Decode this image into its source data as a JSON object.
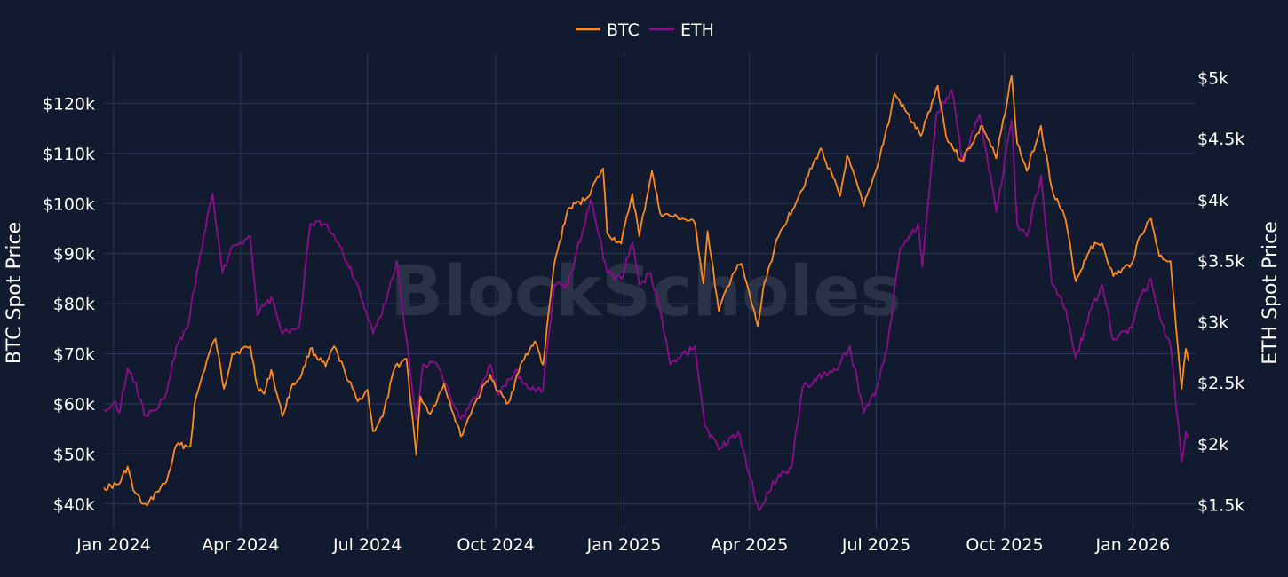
{
  "chart_data": {
    "type": "line",
    "title": "",
    "watermark": "BlockScholes",
    "legend": {
      "placement": "top-center",
      "items": [
        "BTC",
        "ETH"
      ]
    },
    "grid": true,
    "colors": {
      "background": "#111a2e",
      "grid": "#2c3858",
      "btc": "#ff8c1a",
      "eth": "#8c0d8c",
      "text": "#ffffff",
      "watermark": "#2a3248"
    },
    "xaxis": {
      "label": "",
      "range": [
        "2023-12-25",
        "2026-02-15"
      ],
      "ticks": [
        {
          "date": "2024-01-01",
          "label": "Jan 2024"
        },
        {
          "date": "2024-04-01",
          "label": "Apr 2024"
        },
        {
          "date": "2024-07-01",
          "label": "Jul 2024"
        },
        {
          "date": "2024-10-01",
          "label": "Oct 2024"
        },
        {
          "date": "2025-01-01",
          "label": "Jan 2025"
        },
        {
          "date": "2025-04-01",
          "label": "Apr 2025"
        },
        {
          "date": "2025-07-01",
          "label": "Jul 2025"
        },
        {
          "date": "2025-10-01",
          "label": "Oct 2025"
        },
        {
          "date": "2026-01-01",
          "label": "Jan 2026"
        }
      ]
    },
    "yaxis_left": {
      "label": "BTC Spot Price",
      "range": [
        35000,
        130000
      ],
      "ticks": [
        {
          "value": 40000,
          "label": "$40k"
        },
        {
          "value": 50000,
          "label": "$50k"
        },
        {
          "value": 60000,
          "label": "$60k"
        },
        {
          "value": 70000,
          "label": "$70k"
        },
        {
          "value": 80000,
          "label": "$80k"
        },
        {
          "value": 90000,
          "label": "$90k"
        },
        {
          "value": 100000,
          "label": "$100k"
        },
        {
          "value": 110000,
          "label": "$110k"
        },
        {
          "value": 120000,
          "label": "$120k"
        }
      ]
    },
    "yaxis_right": {
      "label": "ETH Spot Price",
      "range": [
        1300,
        5200
      ],
      "ticks": [
        {
          "value": 1500,
          "label": "$1.5k"
        },
        {
          "value": 2000,
          "label": "$2k"
        },
        {
          "value": 2500,
          "label": "$2.5k"
        },
        {
          "value": 3000,
          "label": "$3k"
        },
        {
          "value": 3500,
          "label": "$3.5k"
        },
        {
          "value": 4000,
          "label": "$4k"
        },
        {
          "value": 4500,
          "label": "$4.5k"
        },
        {
          "value": 5000,
          "label": "$5k"
        }
      ]
    },
    "series": [
      {
        "name": "BTC",
        "axis": "left",
        "points": [
          [
            "2023-12-25",
            43200
          ],
          [
            "2024-01-05",
            44000
          ],
          [
            "2024-01-11",
            47500
          ],
          [
            "2024-01-15",
            42800
          ],
          [
            "2024-01-22",
            40000
          ],
          [
            "2024-01-25",
            39700
          ],
          [
            "2024-02-01",
            42500
          ],
          [
            "2024-02-08",
            44500
          ],
          [
            "2024-02-15",
            51800
          ],
          [
            "2024-02-25",
            51500
          ],
          [
            "2024-02-28",
            60000
          ],
          [
            "2024-03-05",
            66000
          ],
          [
            "2024-03-10",
            70500
          ],
          [
            "2024-03-14",
            73000
          ],
          [
            "2024-03-20",
            63000
          ],
          [
            "2024-03-26",
            70000
          ],
          [
            "2024-04-08",
            71500
          ],
          [
            "2024-04-13",
            63500
          ],
          [
            "2024-04-18",
            62000
          ],
          [
            "2024-04-23",
            66800
          ],
          [
            "2024-05-01",
            57500
          ],
          [
            "2024-05-07",
            63000
          ],
          [
            "2024-05-15",
            66000
          ],
          [
            "2024-05-21",
            71000
          ],
          [
            "2024-06-01",
            67500
          ],
          [
            "2024-06-07",
            71500
          ],
          [
            "2024-06-15",
            66200
          ],
          [
            "2024-06-24",
            60500
          ],
          [
            "2024-07-01",
            62800
          ],
          [
            "2024-07-05",
            54500
          ],
          [
            "2024-07-12",
            57500
          ],
          [
            "2024-07-21",
            67500
          ],
          [
            "2024-07-29",
            69000
          ],
          [
            "2024-08-05",
            49800
          ],
          [
            "2024-08-08",
            61500
          ],
          [
            "2024-08-15",
            58000
          ],
          [
            "2024-08-25",
            64000
          ],
          [
            "2024-09-06",
            53500
          ],
          [
            "2024-09-15",
            59500
          ],
          [
            "2024-09-27",
            65800
          ],
          [
            "2024-10-01",
            63000
          ],
          [
            "2024-10-10",
            60200
          ],
          [
            "2024-10-20",
            68500
          ],
          [
            "2024-10-29",
            72500
          ],
          [
            "2024-11-04",
            67800
          ],
          [
            "2024-11-12",
            88000
          ],
          [
            "2024-11-22",
            99000
          ],
          [
            "2024-12-05",
            101000
          ],
          [
            "2024-12-17",
            107000
          ],
          [
            "2024-12-20",
            94000
          ],
          [
            "2024-12-30",
            92000
          ],
          [
            "2025-01-07",
            102000
          ],
          [
            "2025-01-12",
            93500
          ],
          [
            "2025-01-21",
            106500
          ],
          [
            "2025-01-27",
            98000
          ],
          [
            "2025-02-03",
            97500
          ],
          [
            "2025-02-12",
            97000
          ],
          [
            "2025-02-21",
            96000
          ],
          [
            "2025-02-27",
            84000
          ],
          [
            "2025-03-02",
            94500
          ],
          [
            "2025-03-10",
            78500
          ],
          [
            "2025-03-20",
            86000
          ],
          [
            "2025-03-26",
            88000
          ],
          [
            "2025-04-07",
            75500
          ],
          [
            "2025-04-12",
            84500
          ],
          [
            "2025-04-22",
            93500
          ],
          [
            "2025-05-08",
            102500
          ],
          [
            "2025-05-22",
            111000
          ],
          [
            "2025-06-05",
            101500
          ],
          [
            "2025-06-10",
            109500
          ],
          [
            "2025-06-22",
            99500
          ],
          [
            "2025-07-01",
            106800
          ],
          [
            "2025-07-11",
            117500
          ],
          [
            "2025-07-14",
            122000
          ],
          [
            "2025-08-02",
            113500
          ],
          [
            "2025-08-14",
            123500
          ],
          [
            "2025-08-20",
            113500
          ],
          [
            "2025-08-31",
            108500
          ],
          [
            "2025-09-15",
            115500
          ],
          [
            "2025-09-25",
            109000
          ],
          [
            "2025-10-06",
            125500
          ],
          [
            "2025-10-10",
            112000
          ],
          [
            "2025-10-17",
            106500
          ],
          [
            "2025-10-27",
            115500
          ],
          [
            "2025-11-04",
            103000
          ],
          [
            "2025-11-14",
            96500
          ],
          [
            "2025-11-21",
            84500
          ],
          [
            "2025-12-02",
            91500
          ],
          [
            "2025-12-10",
            92000
          ],
          [
            "2025-12-18",
            85500
          ],
          [
            "2025-12-31",
            88000
          ],
          [
            "2026-01-06",
            93500
          ],
          [
            "2026-01-14",
            97000
          ],
          [
            "2026-01-20",
            89500
          ],
          [
            "2026-01-28",
            88500
          ],
          [
            "2026-02-05",
            63000
          ],
          [
            "2026-02-08",
            71000
          ],
          [
            "2026-02-10",
            68500
          ]
        ]
      },
      {
        "name": "ETH",
        "axis": "left",
        "points": [
          [
            "2023-12-25",
            2280
          ],
          [
            "2024-01-02",
            2350
          ],
          [
            "2024-01-05",
            2250
          ],
          [
            "2024-01-11",
            2620
          ],
          [
            "2024-01-17",
            2500
          ],
          [
            "2024-01-23",
            2230
          ],
          [
            "2024-02-01",
            2280
          ],
          [
            "2024-02-08",
            2420
          ],
          [
            "2024-02-15",
            2800
          ],
          [
            "2024-02-23",
            2950
          ],
          [
            "2024-03-03",
            3550
          ],
          [
            "2024-03-12",
            4050
          ],
          [
            "2024-03-19",
            3400
          ],
          [
            "2024-03-26",
            3620
          ],
          [
            "2024-04-08",
            3700
          ],
          [
            "2024-04-13",
            3050
          ],
          [
            "2024-04-23",
            3200
          ],
          [
            "2024-05-01",
            2900
          ],
          [
            "2024-05-13",
            2950
          ],
          [
            "2024-05-21",
            3800
          ],
          [
            "2024-06-02",
            3800
          ],
          [
            "2024-06-10",
            3650
          ],
          [
            "2024-06-24",
            3300
          ],
          [
            "2024-07-05",
            2900
          ],
          [
            "2024-07-14",
            3150
          ],
          [
            "2024-07-22",
            3500
          ],
          [
            "2024-08-05",
            2200
          ],
          [
            "2024-08-10",
            2650
          ],
          [
            "2024-08-20",
            2650
          ],
          [
            "2024-09-06",
            2200
          ],
          [
            "2024-09-18",
            2400
          ],
          [
            "2024-09-27",
            2650
          ],
          [
            "2024-10-03",
            2400
          ],
          [
            "2024-10-15",
            2600
          ],
          [
            "2024-10-25",
            2450
          ],
          [
            "2024-11-04",
            2450
          ],
          [
            "2024-11-12",
            3300
          ],
          [
            "2024-11-22",
            3300
          ],
          [
            "2024-12-08",
            4000
          ],
          [
            "2024-12-20",
            3400
          ],
          [
            "2024-12-30",
            3350
          ],
          [
            "2025-01-07",
            3650
          ],
          [
            "2025-01-12",
            3300
          ],
          [
            "2025-01-20",
            3400
          ],
          [
            "2025-01-27",
            3100
          ],
          [
            "2025-02-03",
            2650
          ],
          [
            "2025-02-10",
            2700
          ],
          [
            "2025-02-21",
            2800
          ],
          [
            "2025-02-28",
            2150
          ],
          [
            "2025-03-10",
            1950
          ],
          [
            "2025-03-24",
            2100
          ],
          [
            "2025-04-08",
            1450
          ],
          [
            "2025-04-15",
            1600
          ],
          [
            "2025-04-22",
            1750
          ],
          [
            "2025-05-01",
            1800
          ],
          [
            "2025-05-09",
            2450
          ],
          [
            "2025-05-20",
            2550
          ],
          [
            "2025-06-02",
            2600
          ],
          [
            "2025-06-12",
            2800
          ],
          [
            "2025-06-22",
            2250
          ],
          [
            "2025-07-01",
            2450
          ],
          [
            "2025-07-09",
            2800
          ],
          [
            "2025-07-18",
            3600
          ],
          [
            "2025-07-31",
            3800
          ],
          [
            "2025-08-03",
            3450
          ],
          [
            "2025-08-13",
            4700
          ],
          [
            "2025-08-24",
            4900
          ],
          [
            "2025-09-01",
            4300
          ],
          [
            "2025-09-13",
            4700
          ],
          [
            "2025-09-25",
            3900
          ],
          [
            "2025-10-06",
            4650
          ],
          [
            "2025-10-10",
            3800
          ],
          [
            "2025-10-17",
            3700
          ],
          [
            "2025-10-27",
            4200
          ],
          [
            "2025-11-04",
            3300
          ],
          [
            "2025-11-14",
            3100
          ],
          [
            "2025-11-21",
            2700
          ],
          [
            "2025-12-02",
            3100
          ],
          [
            "2025-12-10",
            3300
          ],
          [
            "2025-12-18",
            2850
          ],
          [
            "2025-12-31",
            2950
          ],
          [
            "2026-01-06",
            3200
          ],
          [
            "2026-01-14",
            3350
          ],
          [
            "2026-01-20",
            3050
          ],
          [
            "2026-01-28",
            2800
          ],
          [
            "2026-02-05",
            1850
          ],
          [
            "2026-02-08",
            2100
          ],
          [
            "2026-02-10",
            2050
          ]
        ]
      }
    ]
  }
}
